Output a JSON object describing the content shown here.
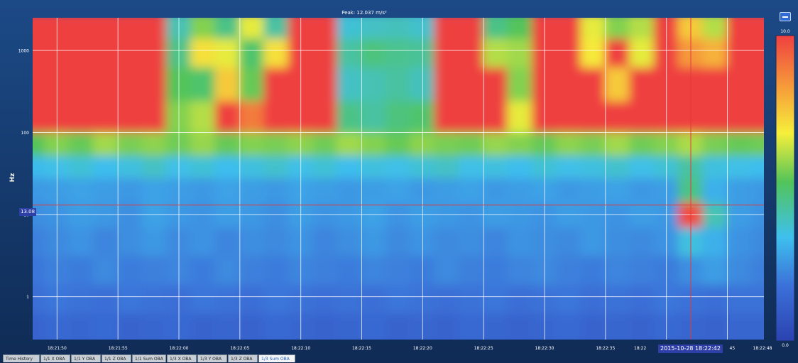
{
  "title": "Peak: 12.037 m/s²",
  "tabs": [
    "Time History",
    "1/1 X OBA",
    "1/1 Y OBA",
    "1/1 Z OBA",
    "1/1 Sum OBA",
    "1/3 X OBA",
    "1/3 Y OBA",
    "1/3 Z OBA",
    "1/3 Sum OBA"
  ],
  "active_tab": 8,
  "cursor": {
    "date_label": "2015-10-28",
    "time_label": "18:22:42",
    "freq_label": "13.08"
  },
  "chart_data": {
    "type": "heatmap",
    "title": "Peak: 12.037 m/s²",
    "xlabel": "",
    "ylabel": "Hz",
    "y_scale": "log",
    "ylim": [
      0.3,
      2500
    ],
    "y_ticks": [
      1000,
      100,
      10,
      1
    ],
    "y_tick_labels": [
      "1000",
      "100",
      "10",
      "1"
    ],
    "x_ticks": [
      "18:21:50",
      "18:21:55",
      "18:22:00",
      "18:22:05",
      "18:22:10",
      "18:22:15",
      "18:22:20",
      "18:22:25",
      "18:22:30",
      "18:22:35",
      "18:22:40",
      "18:22:45",
      "18:22:48"
    ],
    "x_tick_labels_visible": [
      "18:21:50",
      "18:21:55",
      "18:22:00",
      "18:22:05",
      "18:22:10",
      "18:22:15",
      "18:22:20",
      "18:22:25",
      "18:22:30",
      "18:22:35",
      "18:22",
      "45",
      "18:22:48"
    ],
    "colorbar": {
      "min": 0.0,
      "max": 10.0,
      "min_label": "0.0",
      "max_label": "10.0"
    },
    "peak_value": 12.037,
    "peak_unit": "m/s²",
    "cursor_time": "18:22:42",
    "cursor_freq_hz": 13.08,
    "grid": true,
    "colors": {
      "scale": [
        "#2b42b0",
        "#3b70d8",
        "#3ec0ee",
        "#52c45a",
        "#f6ef3a",
        "#f6a23a",
        "#ef4040"
      ],
      "cursor": "#e23a3a"
    },
    "sample_times": [
      "18:21:48",
      "18:21:50",
      "18:21:52",
      "18:21:54",
      "18:21:56",
      "18:21:58",
      "18:22:00",
      "18:22:02",
      "18:22:04",
      "18:22:06",
      "18:22:08",
      "18:22:10",
      "18:22:12",
      "18:22:14",
      "18:22:16",
      "18:22:18",
      "18:22:20",
      "18:22:22",
      "18:22:24",
      "18:22:26",
      "18:22:28",
      "18:22:30",
      "18:22:32",
      "18:22:34",
      "18:22:36",
      "18:22:38",
      "18:22:40",
      "18:22:42",
      "18:22:44",
      "18:22:46",
      "18:22:48"
    ],
    "band_centers_hz": [
      0.4,
      1,
      2,
      5,
      10,
      20,
      40,
      70,
      150,
      400,
      1000,
      2000
    ],
    "z_values": [
      [
        1.2,
        1.4,
        1.3,
        1.5,
        1.2,
        1.3,
        1.4,
        1.2,
        1.3,
        1.2,
        1.4,
        1.3,
        1.2,
        1.3,
        1.4,
        1.2,
        1.3,
        1.2,
        1.4,
        1.3,
        1.2,
        1.3,
        1.4,
        1.2,
        1.3,
        1.2,
        1.4,
        1.3,
        1.2,
        1.3,
        1.3
      ],
      [
        1.6,
        1.8,
        1.7,
        1.6,
        1.8,
        1.7,
        1.6,
        1.8,
        1.7,
        1.6,
        1.8,
        1.7,
        1.6,
        1.7,
        1.6,
        1.8,
        1.7,
        1.6,
        1.7,
        1.8,
        1.6,
        1.7,
        1.8,
        1.6,
        1.7,
        1.6,
        1.8,
        1.7,
        1.6,
        1.7,
        1.7
      ],
      [
        1.8,
        2.0,
        1.9,
        2.2,
        1.9,
        2.0,
        2.1,
        1.9,
        2.2,
        2.0,
        1.9,
        2.1,
        2.0,
        1.9,
        2.1,
        2.0,
        1.9,
        2.2,
        2.0,
        1.9,
        2.1,
        2.2,
        2.0,
        1.9,
        2.1,
        2.0,
        1.9,
        2.3,
        2.6,
        2.2,
        2.0
      ],
      [
        2.0,
        2.2,
        2.4,
        2.1,
        2.3,
        2.5,
        2.2,
        2.4,
        2.1,
        2.3,
        2.2,
        2.4,
        2.1,
        2.3,
        2.5,
        2.2,
        2.4,
        2.2,
        2.3,
        2.1,
        2.4,
        2.3,
        2.2,
        2.5,
        2.3,
        2.2,
        2.4,
        3.5,
        3.0,
        2.4,
        2.2
      ],
      [
        2.3,
        2.4,
        2.6,
        2.5,
        2.3,
        2.7,
        2.5,
        2.4,
        2.6,
        2.5,
        2.3,
        2.6,
        2.4,
        2.5,
        2.7,
        2.4,
        2.6,
        2.5,
        2.4,
        2.6,
        2.5,
        2.4,
        2.6,
        2.5,
        2.4,
        2.6,
        2.5,
        9.8,
        4.0,
        2.6,
        2.4
      ],
      [
        2.5,
        2.6,
        2.7,
        2.6,
        2.5,
        2.7,
        2.6,
        2.5,
        2.7,
        2.6,
        2.5,
        2.7,
        2.6,
        2.5,
        2.6,
        2.7,
        2.5,
        2.6,
        2.7,
        2.5,
        2.6,
        2.7,
        2.5,
        2.6,
        2.7,
        2.5,
        2.6,
        4.5,
        3.0,
        2.6,
        2.5
      ],
      [
        3.2,
        3.4,
        3.6,
        3.3,
        3.5,
        3.8,
        3.4,
        3.6,
        3.3,
        3.5,
        3.7,
        3.4,
        3.6,
        3.3,
        3.5,
        3.4,
        3.6,
        3.8,
        3.4,
        3.5,
        3.3,
        3.6,
        3.4,
        3.5,
        3.7,
        3.4,
        3.6,
        4.2,
        3.5,
        3.4,
        3.3
      ],
      [
        5.0,
        5.5,
        5.2,
        5.8,
        5.4,
        5.6,
        5.3,
        5.7,
        5.2,
        5.5,
        5.4,
        5.6,
        5.3,
        5.8,
        5.5,
        5.2,
        5.6,
        5.4,
        5.3,
        5.7,
        5.5,
        5.2,
        5.6,
        5.4,
        5.8,
        5.3,
        5.5,
        5.9,
        5.4,
        5.2,
        5.3
      ],
      [
        10,
        10,
        10,
        10,
        10,
        10,
        5.5,
        6.0,
        10,
        9.0,
        10,
        10,
        10,
        4.5,
        4.2,
        4.6,
        4.8,
        10,
        10,
        10,
        6.5,
        10,
        10,
        10,
        10,
        10,
        10,
        10,
        10,
        10,
        10
      ],
      [
        10,
        10,
        10,
        10,
        10,
        10,
        5.0,
        4.8,
        7.5,
        5.2,
        10,
        10,
        10,
        3.8,
        4.0,
        4.2,
        3.9,
        10,
        10,
        10,
        5.5,
        10,
        10,
        10,
        7.5,
        10,
        10,
        10,
        10,
        10,
        10
      ],
      [
        10,
        10,
        10,
        10,
        10,
        10,
        4.5,
        7.0,
        6.5,
        4.8,
        7.0,
        10,
        10,
        4.2,
        4.6,
        4.4,
        4.3,
        10,
        10,
        6.0,
        5.8,
        10,
        10,
        6.8,
        10,
        6.5,
        10,
        8.5,
        8.0,
        10,
        10
      ],
      [
        10,
        10,
        10,
        10,
        10,
        10,
        4.0,
        5.5,
        4.5,
        6.5,
        4.2,
        10,
        10,
        3.6,
        3.8,
        3.9,
        3.7,
        10,
        10,
        4.5,
        5.0,
        10,
        10,
        6.5,
        5.5,
        6.0,
        10,
        7.5,
        6.0,
        10,
        10
      ]
    ]
  }
}
